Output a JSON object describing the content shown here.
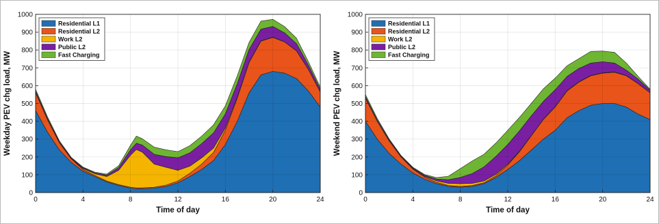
{
  "chart_data": [
    {
      "type": "area",
      "stacked": true,
      "xlabel": "Time of day",
      "ylabel": "Weekday PEV chg load, MW",
      "xlim": [
        0,
        24
      ],
      "ylim": [
        0,
        1000
      ],
      "xticks": [
        0,
        4,
        8,
        12,
        16,
        20,
        24
      ],
      "yticks": [
        0,
        100,
        200,
        300,
        400,
        500,
        600,
        700,
        800,
        900,
        1000
      ],
      "grid": true,
      "legend_position": "top-left",
      "x": [
        0,
        1,
        2,
        3,
        4,
        5,
        6,
        7,
        8,
        8.5,
        9,
        10,
        11,
        12,
        13,
        14,
        15,
        16,
        17,
        18,
        19,
        20,
        21,
        22,
        23,
        24
      ],
      "series": [
        {
          "name": "Residential L1",
          "color": "#1f6fb4",
          "values": [
            460,
            340,
            240,
            170,
            120,
            90,
            60,
            40,
            25,
            22,
            22,
            25,
            35,
            55,
            90,
            130,
            180,
            270,
            400,
            560,
            660,
            680,
            670,
            640,
            570,
            480
          ]
        },
        {
          "name": "Residential L2",
          "color": "#e8541a",
          "values": [
            100,
            70,
            40,
            20,
            10,
            6,
            5,
            5,
            5,
            5,
            5,
            5,
            7,
            10,
            18,
            30,
            45,
            80,
            130,
            170,
            190,
            190,
            175,
            155,
            120,
            85
          ]
        },
        {
          "name": "Work L2",
          "color": "#f4b400",
          "values": [
            0,
            0,
            0,
            0,
            5,
            10,
            25,
            80,
            180,
            215,
            200,
            130,
            100,
            60,
            40,
            35,
            25,
            12,
            6,
            3,
            2,
            2,
            1,
            1,
            0,
            0
          ]
        },
        {
          "name": "Public L2",
          "color": "#7a1fa2",
          "values": [
            10,
            8,
            6,
            5,
            5,
            5,
            8,
            15,
            30,
            35,
            40,
            55,
            60,
            70,
            75,
            80,
            85,
            80,
            75,
            70,
            65,
            60,
            50,
            40,
            25,
            15
          ]
        },
        {
          "name": "Fast Charging",
          "color": "#6fb534",
          "values": [
            10,
            8,
            5,
            3,
            3,
            4,
            6,
            10,
            25,
            40,
            35,
            40,
            38,
            35,
            40,
            42,
            45,
            45,
            45,
            40,
            45,
            40,
            35,
            30,
            20,
            12
          ]
        }
      ]
    },
    {
      "type": "area",
      "stacked": true,
      "xlabel": "Time of day",
      "ylabel": "Weekend PEV chg load, MW",
      "xlim": [
        0,
        24
      ],
      "ylim": [
        0,
        1000
      ],
      "xticks": [
        0,
        4,
        8,
        12,
        16,
        20,
        24
      ],
      "yticks": [
        0,
        100,
        200,
        300,
        400,
        500,
        600,
        700,
        800,
        900,
        1000
      ],
      "grid": true,
      "legend_position": "top-left",
      "x": [
        0,
        1,
        2,
        3,
        4,
        5,
        6,
        7,
        8,
        9,
        10,
        11,
        12,
        13,
        14,
        15,
        16,
        17,
        18,
        19,
        20,
        21,
        22,
        23,
        24
      ],
      "series": [
        {
          "name": "Residential L1",
          "color": "#1f6fb4",
          "values": [
            400,
            300,
            220,
            160,
            110,
            75,
            50,
            35,
            30,
            35,
            50,
            85,
            130,
            180,
            240,
            300,
            350,
            420,
            460,
            490,
            500,
            500,
            480,
            440,
            410
          ]
        },
        {
          "name": "Residential L2",
          "color": "#e8541a",
          "values": [
            130,
            100,
            70,
            40,
            22,
            12,
            8,
            5,
            5,
            5,
            5,
            10,
            25,
            50,
            80,
            110,
            130,
            150,
            160,
            165,
            170,
            175,
            175,
            170,
            150
          ]
        },
        {
          "name": "Work L2",
          "color": "#f4b400",
          "values": [
            0,
            0,
            0,
            0,
            2,
            4,
            8,
            12,
            15,
            12,
            10,
            8,
            5,
            3,
            2,
            2,
            2,
            2,
            2,
            2,
            2,
            2,
            2,
            1,
            0
          ]
        },
        {
          "name": "Public L2",
          "color": "#7a1fa2",
          "values": [
            10,
            8,
            6,
            5,
            5,
            6,
            10,
            20,
            35,
            55,
            80,
            100,
            110,
            115,
            110,
            100,
            95,
            80,
            75,
            70,
            62,
            50,
            30,
            25,
            15
          ]
        },
        {
          "name": "Fast Charging",
          "color": "#6fb534",
          "values": [
            10,
            8,
            5,
            3,
            3,
            4,
            8,
            20,
            50,
            70,
            70,
            75,
            80,
            75,
            70,
            70,
            65,
            60,
            55,
            65,
            60,
            60,
            40,
            15,
            5
          ]
        }
      ]
    }
  ]
}
